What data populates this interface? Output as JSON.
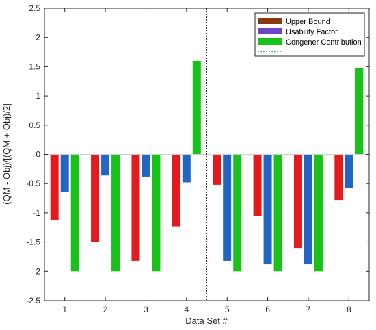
{
  "chart_data": {
    "type": "bar",
    "title": "",
    "xlabel": "Data Set #",
    "ylabel": "(QM - Obj)/[(QM + Obj)/2]",
    "categories": [
      "1",
      "2",
      "3",
      "4",
      "5",
      "6",
      "7",
      "8"
    ],
    "ylim": [
      -2.5,
      2.5
    ],
    "yticks": [
      -2.5,
      -2,
      -1.5,
      -1,
      -0.5,
      0,
      0.5,
      1,
      1.5,
      2,
      2.5
    ],
    "grid": false,
    "legend_position": "top-right",
    "separator_after_category": "4",
    "series": [
      {
        "name": "Upper Bound",
        "color": "#e41a1c",
        "legend_color": "#8b3a0f",
        "values": [
          -1.13,
          -1.5,
          -1.82,
          -1.23,
          -0.52,
          -1.05,
          -1.6,
          -0.78
        ]
      },
      {
        "name": "Usability Factor",
        "color": "#2166c4",
        "legend_color": "#6b47c7",
        "values": [
          -0.65,
          -0.36,
          -0.38,
          -0.48,
          -1.82,
          -1.88,
          -1.88,
          -0.57
        ]
      },
      {
        "name": "Congener Contribution",
        "color": "#19c219",
        "legend_color": "#19c219",
        "values": [
          -2.0,
          -2.0,
          -2.0,
          1.6,
          -2.0,
          -2.0,
          -2.0,
          1.47
        ]
      }
    ],
    "legend_extra_entry": {
      "style": "dotted",
      "color": "#1a8a8a"
    }
  }
}
